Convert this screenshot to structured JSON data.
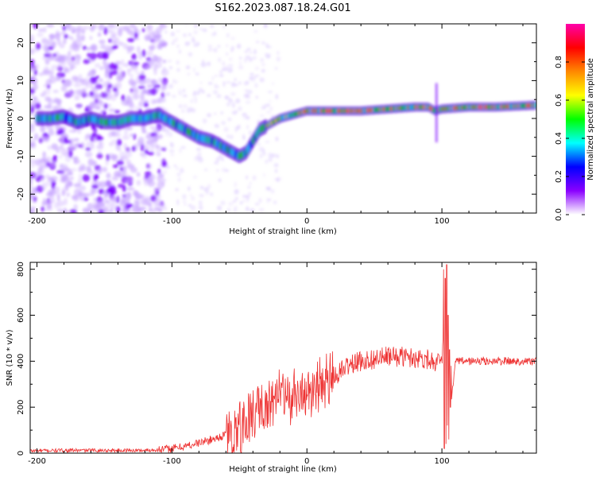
{
  "title": "S162.2023.087.18.24.G01",
  "chart_data": [
    {
      "type": "heatmap",
      "xlabel": "Height of straight line (km)",
      "ylabel": "Frequency (Hz)",
      "xlim": [
        -205,
        170
      ],
      "ylim": [
        -25,
        25
      ],
      "x_ticks": [
        -200,
        -100,
        0,
        100
      ],
      "y_ticks": [
        -20,
        -10,
        0,
        10,
        20
      ],
      "colorbar": {
        "label": "Normalized spectral amplitude",
        "range": [
          0,
          1
        ],
        "ticks": [
          "0.0",
          "0.2",
          "0.4",
          "0.6",
          "0.8"
        ],
        "colors": [
          "#ffffff",
          "#8a00ff",
          "#0000ff",
          "#00ffff",
          "#00ff00",
          "#ffff00",
          "#ff8800",
          "#ff0000",
          "#ff00aa"
        ]
      },
      "ridge": {
        "x": [
          -190,
          -180,
          -170,
          -160,
          -150,
          -140,
          -130,
          -120,
          -110,
          -100,
          -90,
          -80,
          -70,
          -60,
          -50,
          -45,
          -40,
          -35,
          -30,
          -20,
          -10,
          0,
          20,
          40,
          60,
          80,
          90,
          95,
          100,
          120,
          140,
          170
        ],
        "y": [
          0,
          0.5,
          -1,
          0,
          -1,
          -1,
          0,
          0,
          1,
          -1,
          -3,
          -5,
          -6,
          -8,
          -10,
          -9,
          -6,
          -3,
          -2,
          0,
          1,
          2,
          2,
          2,
          2.5,
          3,
          3,
          2,
          2.5,
          3,
          3,
          3.5
        ]
      }
    },
    {
      "type": "line",
      "xlabel": "Height of straight line (km)",
      "ylabel": "SNR (10 * v/v)",
      "xlim": [
        -205,
        170
      ],
      "ylim": [
        0,
        830
      ],
      "x_ticks": [
        -200,
        -100,
        0,
        100
      ],
      "y_ticks": [
        0,
        200,
        400,
        600,
        800
      ],
      "line_color": "#ee3333",
      "series": [
        {
          "x": [
            -205,
            -180,
            -150,
            -120,
            -110,
            -100,
            -90,
            -80,
            -70,
            -60,
            -50,
            -40,
            -30,
            -20,
            -10,
            0,
            10,
            20,
            30,
            40,
            50,
            60,
            70,
            80,
            90,
            95,
            100,
            103,
            105,
            110,
            120,
            140,
            170
          ],
          "values": [
            10,
            12,
            12,
            12,
            15,
            20,
            30,
            45,
            60,
            80,
            110,
            160,
            210,
            250,
            220,
            240,
            280,
            330,
            380,
            400,
            410,
            420,
            420,
            415,
            410,
            400,
            380,
            800,
            100,
            400,
            400,
            400,
            400
          ]
        }
      ]
    }
  ]
}
